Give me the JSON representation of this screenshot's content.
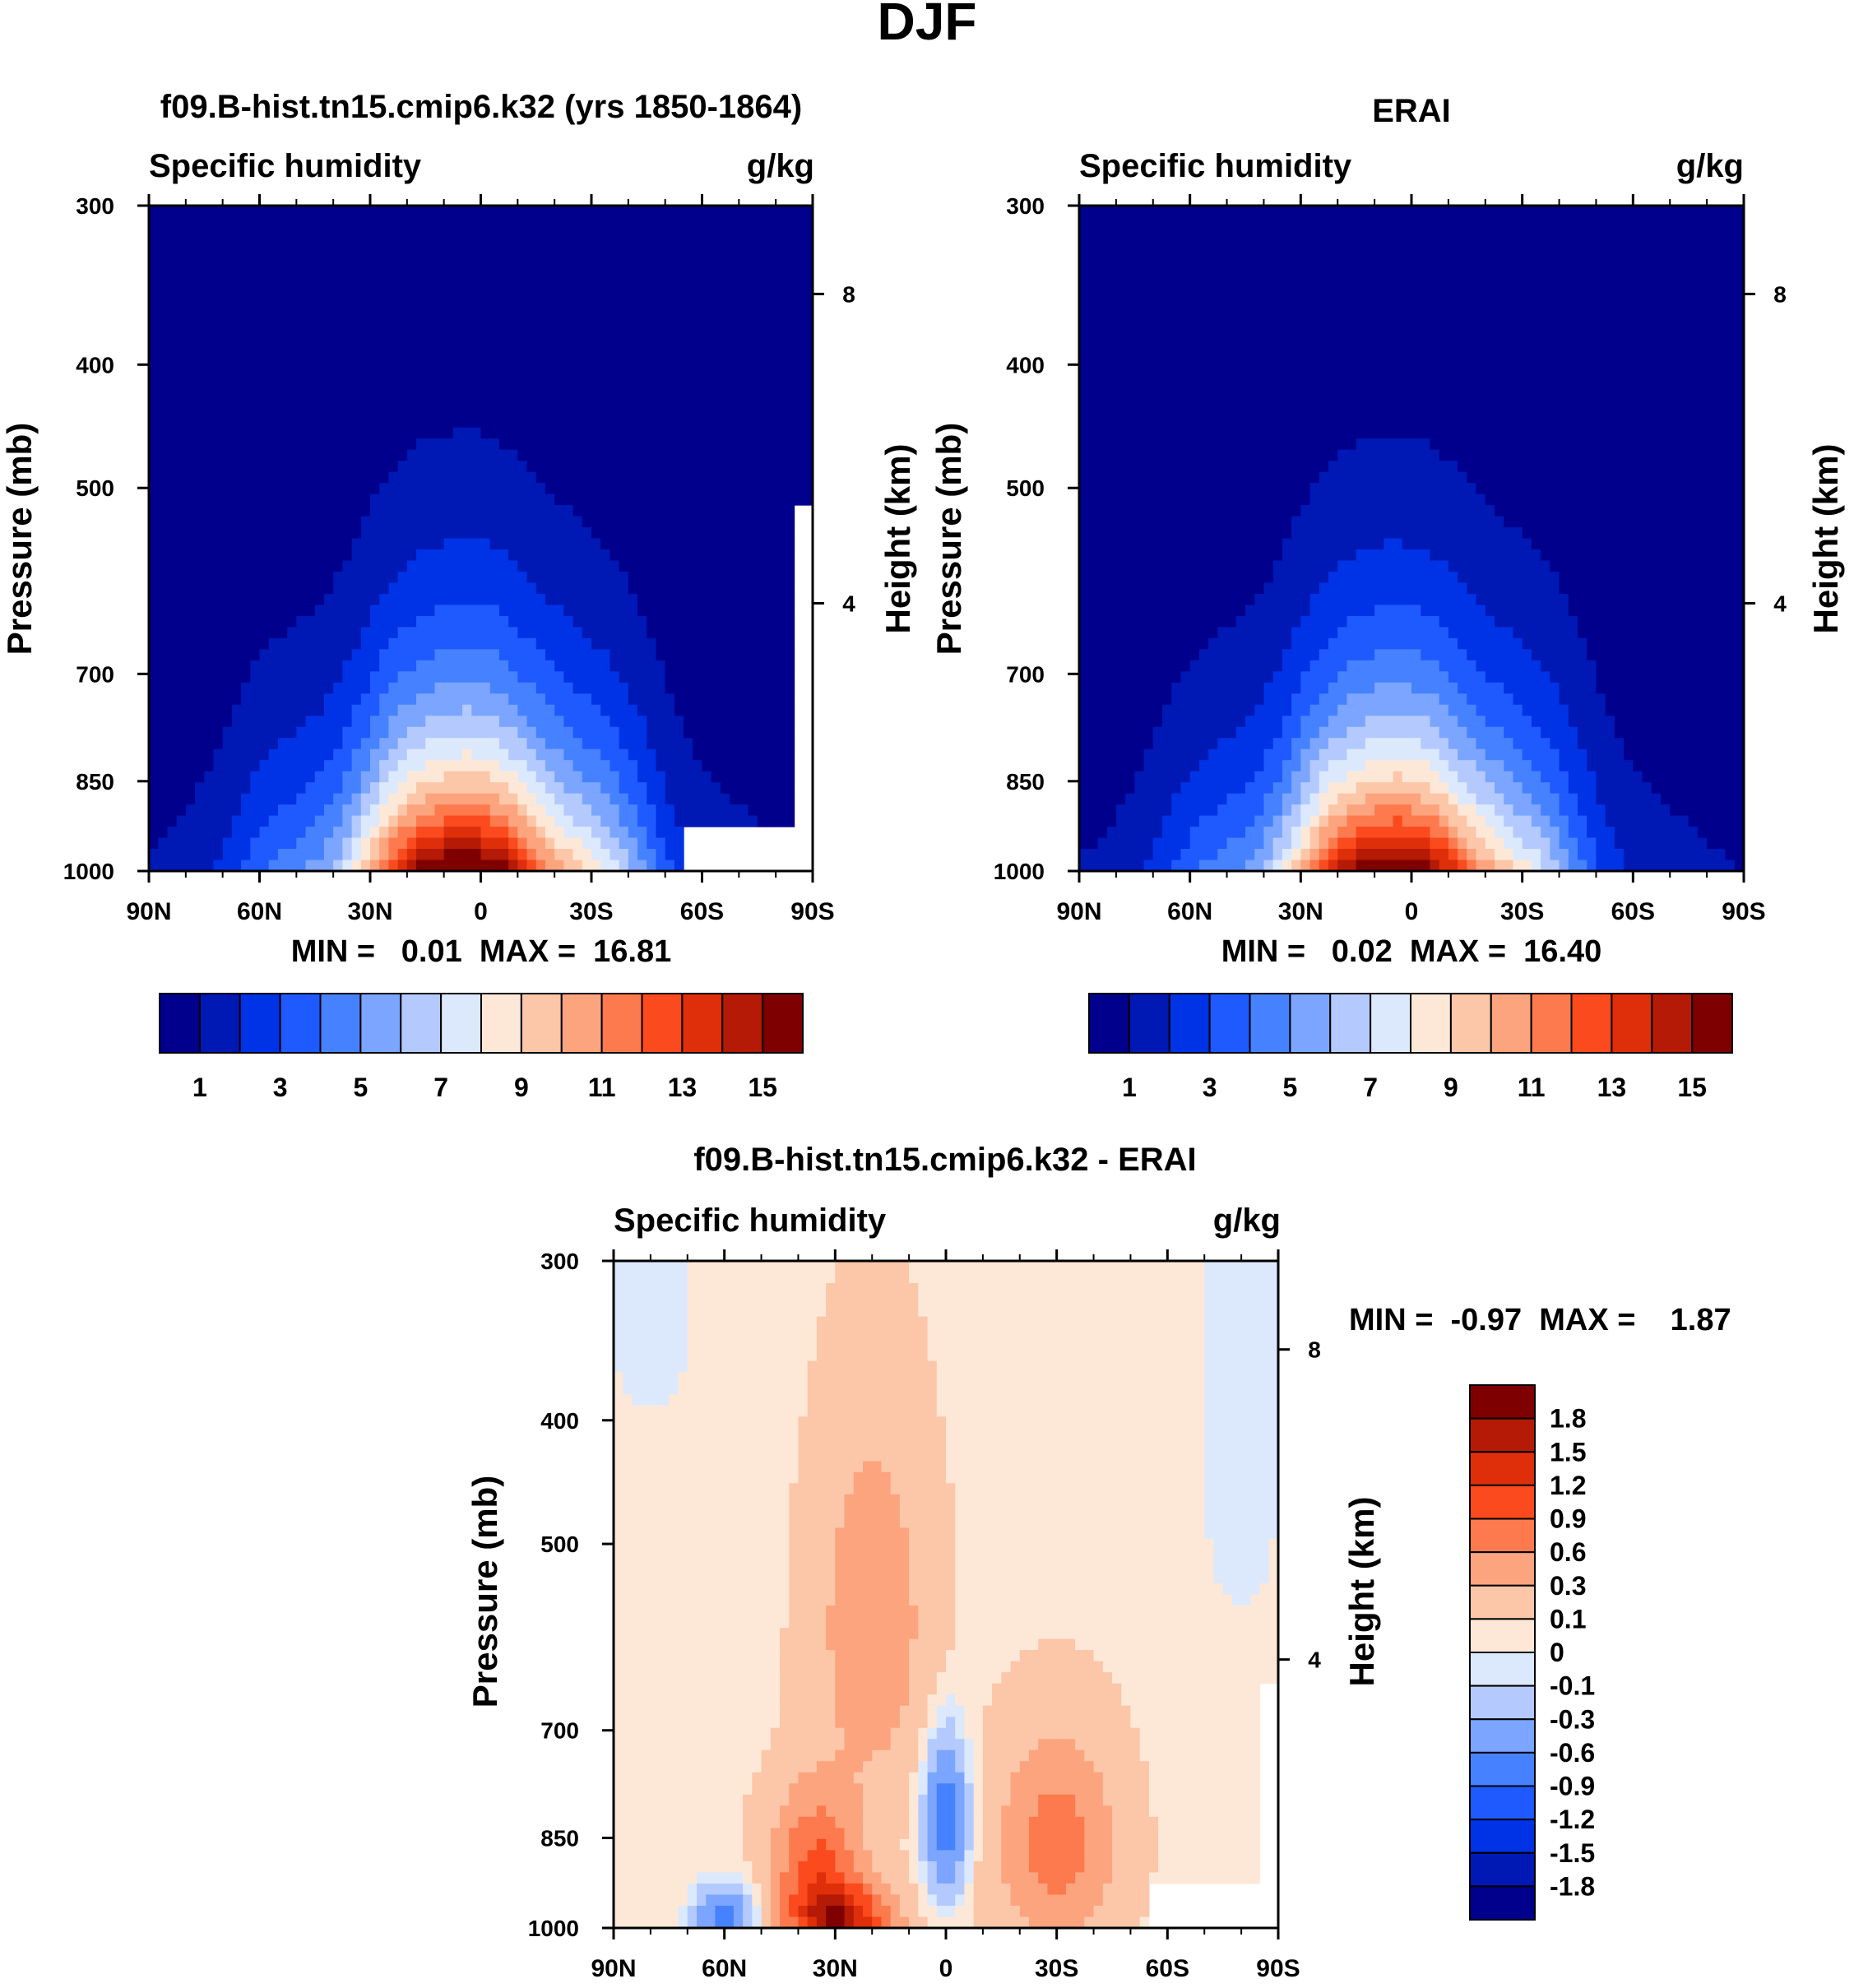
{
  "page": {
    "title": "DJF"
  },
  "colors": {
    "abs_palette": [
      "#00008c",
      "#0018b4",
      "#0032e6",
      "#1e5aff",
      "#4682ff",
      "#7ba5ff",
      "#b4caff",
      "#dce9fc",
      "#fde8d8",
      "#fcc6a8",
      "#fca47e",
      "#fc7a4e",
      "#fa4a1e",
      "#de2e0a",
      "#b41a05",
      "#7f0000"
    ],
    "diff_palette": [
      "#00008c",
      "#0018b4",
      "#0032e6",
      "#1e5aff",
      "#4682ff",
      "#7ba5ff",
      "#b4caff",
      "#dce9fc",
      "#fde8d8",
      "#fcc6a8",
      "#fca47e",
      "#fc7a4e",
      "#fa4a1e",
      "#de2e0a",
      "#b41a05",
      "#7f0000"
    ]
  },
  "chart_data": [
    {
      "type": "heatmap",
      "id": "model",
      "title": "f09.B-hist.tn15.cmip6.k32 (yrs 1850-1864)",
      "left_label": "Specific humidity",
      "right_label": "g/kg",
      "ylabel": "Pressure (mb)",
      "ylabel_right": "Height (km)",
      "x_ticks": [
        "90N",
        "60N",
        "30N",
        "0",
        "30S",
        "60S",
        "90S"
      ],
      "y_ticks": [
        "300",
        "400",
        "500",
        "700",
        "850",
        "1000"
      ],
      "y_right_ticks": [
        "8",
        "4"
      ],
      "stats_text": "MIN =   0.01  MAX =  16.81",
      "colorbar_labels": [
        "1",
        "3",
        "5",
        "7",
        "9",
        "11",
        "13",
        "15"
      ],
      "missing_region": "lower-right (south polar topography)",
      "profile": {
        "peak_lat": 4,
        "peak_value": 16.81,
        "top_pressure": 300,
        "bottom_pressure": 1000
      }
    },
    {
      "type": "heatmap",
      "id": "obs",
      "title": "ERAI",
      "left_label": "Specific humidity",
      "right_label": "g/kg",
      "ylabel": "Pressure (mb)",
      "ylabel_right": "Height (km)",
      "x_ticks": [
        "90N",
        "60N",
        "30N",
        "0",
        "30S",
        "60S",
        "90S"
      ],
      "y_ticks": [
        "300",
        "400",
        "500",
        "700",
        "850",
        "1000"
      ],
      "y_right_ticks": [
        "8",
        "4"
      ],
      "stats_text": "MIN =   0.02  MAX =  16.40",
      "colorbar_labels": [
        "1",
        "3",
        "5",
        "7",
        "9",
        "11",
        "13",
        "15"
      ],
      "profile": {
        "peak_lat": 4,
        "peak_value": 16.4,
        "top_pressure": 300,
        "bottom_pressure": 1000
      }
    },
    {
      "type": "heatmap",
      "id": "diff",
      "title": "f09.B-hist.tn15.cmip6.k32 - ERAI",
      "left_label": "Specific humidity",
      "right_label": "g/kg",
      "ylabel": "Pressure (mb)",
      "ylabel_right": "Height (km)",
      "x_ticks": [
        "90N",
        "60N",
        "30N",
        "0",
        "30S",
        "60S",
        "90S"
      ],
      "y_ticks": [
        "300",
        "400",
        "500",
        "700",
        "850",
        "1000"
      ],
      "y_right_ticks": [
        "8",
        "4"
      ],
      "stats_text": "MIN =  -0.97  MAX =    1.87",
      "colorbar_labels": [
        "1.8",
        "1.5",
        "1.2",
        "0.9",
        "0.6",
        "0.3",
        "0.1",
        "0",
        "-0.1",
        "-0.3",
        "-0.6",
        "-0.9",
        "-1.2",
        "-1.5",
        "-1.8"
      ]
    }
  ]
}
